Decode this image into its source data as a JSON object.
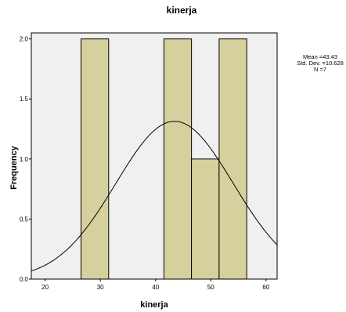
{
  "chart_data": {
    "type": "bar",
    "title": "kinerja",
    "xlabel": "kinerja",
    "ylabel": "Frequency",
    "xlim": [
      17.5,
      62
    ],
    "ylim": [
      0,
      2.05
    ],
    "x_ticks": [
      "20",
      "30",
      "40",
      "50",
      "60"
    ],
    "y_ticks": [
      "0.0",
      "0.5",
      "1.0",
      "1.5",
      "2.0"
    ],
    "bins": [
      {
        "from": 26.5,
        "to": 31.5,
        "count": 2
      },
      {
        "from": 31.5,
        "to": 36.5,
        "count": 0
      },
      {
        "from": 36.5,
        "to": 41.5,
        "count": 0
      },
      {
        "from": 41.5,
        "to": 46.5,
        "count": 2
      },
      {
        "from": 46.5,
        "to": 51.5,
        "count": 1
      },
      {
        "from": 51.5,
        "to": 56.5,
        "count": 2
      }
    ],
    "normal_curve": {
      "mean": 43.43,
      "std_dev": 10.628,
      "n": 7
    },
    "stats_lines": [
      "Mean =43.43",
      "Std. Dev. =10.628",
      "N =7"
    ],
    "grid": false,
    "colors": {
      "bar_fill": "#d6d09e",
      "bar_stroke": "#000000",
      "plot_bg": "#f0f0f0",
      "curve": "#000000"
    }
  }
}
